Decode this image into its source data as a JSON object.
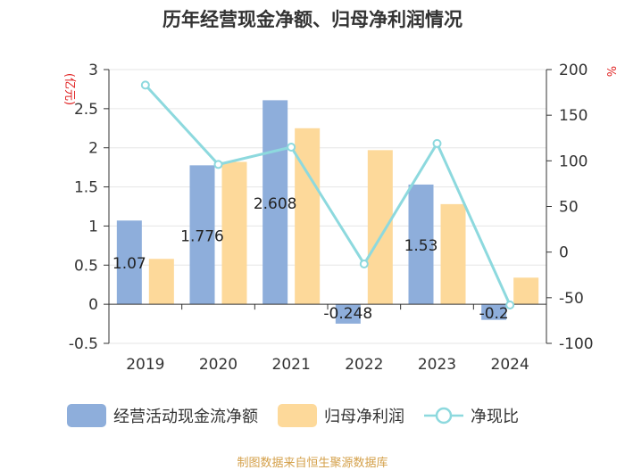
{
  "title": "历年经营现金净额、归母净利润情况",
  "chart_data": {
    "type": "bar+line",
    "categories": [
      "2019",
      "2020",
      "2021",
      "2022",
      "2023",
      "2024"
    ],
    "series": [
      {
        "name": "经营活动现金流净额",
        "axis": "left",
        "kind": "bar",
        "color": "#8eaedb",
        "values": [
          1.07,
          1.776,
          2.608,
          -0.248,
          1.53,
          -0.2
        ],
        "labels": [
          "1.07",
          "1.776",
          "2.608",
          "-0.248",
          "1.53",
          "-0.2"
        ]
      },
      {
        "name": "归母净利润",
        "axis": "left",
        "kind": "bar",
        "color": "#fdd99a",
        "values": [
          0.58,
          1.82,
          2.25,
          1.97,
          1.28,
          0.34
        ]
      },
      {
        "name": "净现比",
        "axis": "right",
        "kind": "line",
        "color": "#8dd9de",
        "values": [
          183,
          96,
          115,
          -13,
          119,
          -58
        ]
      }
    ],
    "left_axis": {
      "label": "(亿元)",
      "min": -0.5,
      "max": 3,
      "ticks": [
        "-0.5",
        "0",
        "0.5",
        "1",
        "1.5",
        "2",
        "2.5",
        "3"
      ]
    },
    "right_axis": {
      "label": "%",
      "min": -100,
      "max": 200,
      "ticks": [
        "-100",
        "-50",
        "0",
        "50",
        "100",
        "150",
        "200"
      ]
    }
  },
  "legend": [
    "经营活动现金流净额",
    "归母净利润",
    "净现比"
  ],
  "source": "制图数据来自恒生聚源数据库"
}
